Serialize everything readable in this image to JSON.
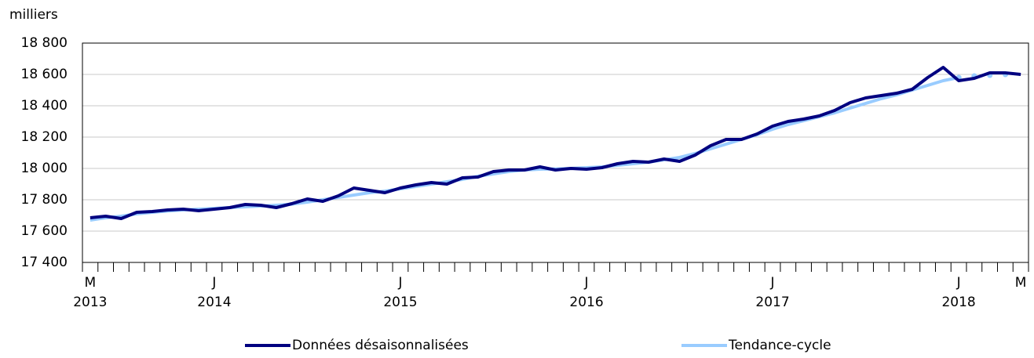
{
  "chart_data": {
    "type": "line",
    "y_axis_label": "milliers",
    "categories": [
      "M",
      null,
      null,
      null,
      null,
      null,
      null,
      null,
      "J",
      null,
      null,
      null,
      null,
      null,
      null,
      null,
      null,
      null,
      null,
      null,
      "J",
      null,
      null,
      null,
      null,
      null,
      null,
      null,
      null,
      null,
      null,
      null,
      "J",
      null,
      null,
      null,
      null,
      null,
      null,
      null,
      null,
      null,
      null,
      null,
      "J",
      null,
      null,
      null,
      null,
      null,
      null,
      null,
      null,
      null,
      null,
      null,
      "J",
      null,
      null,
      null,
      "M"
    ],
    "category_years": [
      "2013",
      null,
      null,
      null,
      null,
      null,
      null,
      null,
      "2014",
      null,
      null,
      null,
      null,
      null,
      null,
      null,
      null,
      null,
      null,
      null,
      "2015",
      null,
      null,
      null,
      null,
      null,
      null,
      null,
      null,
      null,
      null,
      null,
      "2016",
      null,
      null,
      null,
      null,
      null,
      null,
      null,
      null,
      null,
      null,
      null,
      "2017",
      null,
      null,
      null,
      null,
      null,
      null,
      null,
      null,
      null,
      null,
      null,
      "2018",
      null,
      null,
      null,
      null
    ],
    "series": [
      {
        "name": "Données désaisonnalisées",
        "color": "#000080",
        "values": [
          17685,
          17695,
          17680,
          17720,
          17725,
          17735,
          17740,
          17730,
          17740,
          17750,
          17770,
          17765,
          17750,
          17775,
          17805,
          17790,
          17825,
          17875,
          17860,
          17845,
          17875,
          17895,
          17910,
          17900,
          17940,
          17945,
          17980,
          17990,
          17990,
          18010,
          17990,
          18000,
          17995,
          18005,
          18030,
          18045,
          18040,
          18060,
          18045,
          18085,
          18145,
          18185,
          18185,
          18220,
          18270,
          18300,
          18315,
          18335,
          18370,
          18420,
          18450,
          18465,
          18480,
          18505,
          18580,
          18645,
          18560,
          18575,
          18610,
          18610,
          18600
        ]
      },
      {
        "name": "Tendance-cycle",
        "color": "#99ccff",
        "dotted_from": 56,
        "values": [
          17670,
          17685,
          17695,
          17710,
          17720,
          17728,
          17735,
          17740,
          17745,
          17750,
          17755,
          17760,
          17765,
          17772,
          17785,
          17800,
          17815,
          17830,
          17845,
          17855,
          17870,
          17885,
          17900,
          17915,
          17930,
          17950,
          17965,
          17980,
          17990,
          17995,
          17997,
          18000,
          18005,
          18010,
          18020,
          18030,
          18040,
          18055,
          18070,
          18095,
          18125,
          18155,
          18185,
          18215,
          18250,
          18280,
          18305,
          18330,
          18355,
          18385,
          18415,
          18445,
          18470,
          18500,
          18530,
          18560,
          18580,
          18590,
          18595,
          18600,
          18595
        ]
      }
    ],
    "ylim": [
      17400,
      18800
    ],
    "yticks": [
      {
        "value": 17400,
        "label": "17 400"
      },
      {
        "value": 17600,
        "label": "17 600"
      },
      {
        "value": 17800,
        "label": "17 800"
      },
      {
        "value": 18000,
        "label": "18 000"
      },
      {
        "value": 18200,
        "label": "18 200"
      },
      {
        "value": 18400,
        "label": "18 400"
      },
      {
        "value": 18600,
        "label": "18 600"
      },
      {
        "value": 18800,
        "label": "18 800"
      }
    ],
    "grid": true
  }
}
